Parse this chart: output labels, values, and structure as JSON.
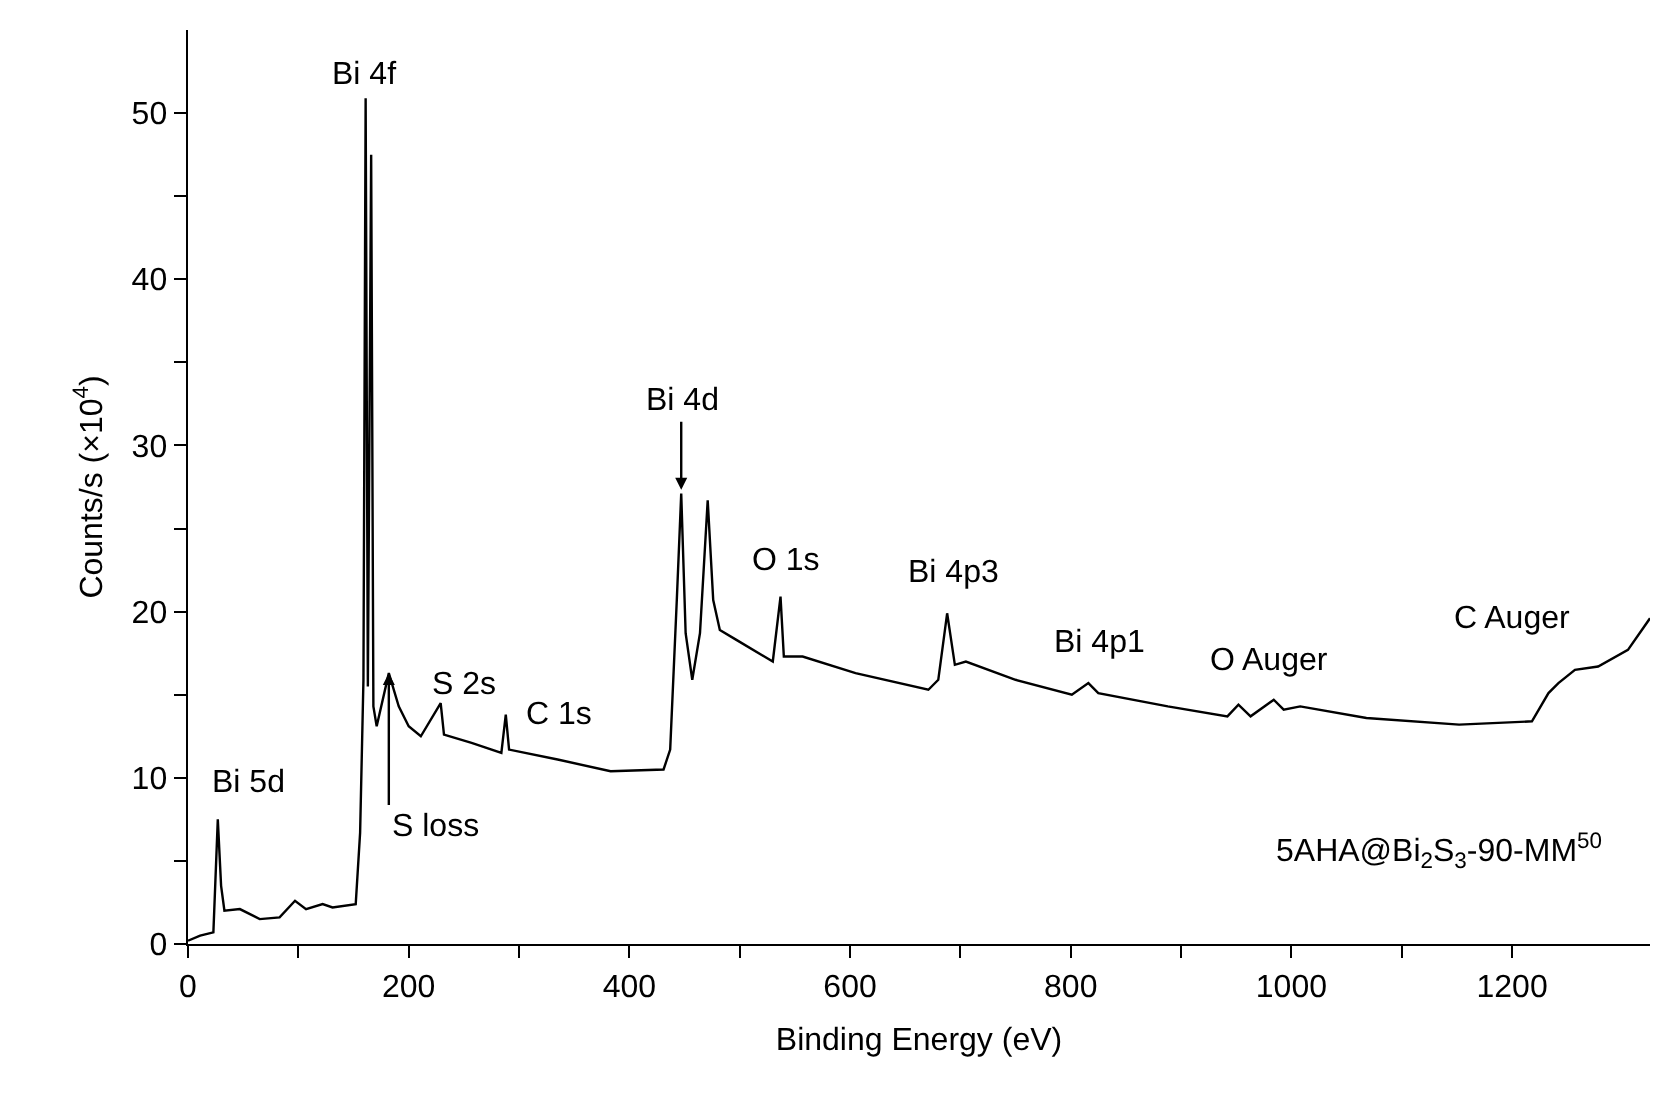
{
  "chart_data": {
    "type": "line",
    "xlabel": "Binding Energy (eV)",
    "ylabel": "Counts/s (×10$^{4}$)",
    "xlim": [
      0,
      1325
    ],
    "ylim": [
      0,
      55
    ],
    "xticks": [
      0,
      {
        "value": 100,
        "label": null
      },
      200,
      {
        "value": 300,
        "label": null
      },
      400,
      {
        "value": 500,
        "label": null
      },
      600,
      {
        "value": 700,
        "label": null
      },
      800,
      {
        "value": 900,
        "label": null
      },
      1000,
      {
        "value": 1100,
        "label": null
      },
      1200
    ],
    "yticks": [
      0,
      {
        "value": 5,
        "label": null
      },
      10,
      {
        "value": 15,
        "label": null
      },
      20,
      {
        "value": 25,
        "label": null
      },
      30,
      {
        "value": 35,
        "label": null
      },
      40,
      {
        "value": 45,
        "label": null
      },
      50
    ],
    "grid": false,
    "marker": "none",
    "line_style": "solid",
    "series": [
      {
        "color": "#000000",
        "x": [
          0,
          11,
          23,
          27,
          30,
          33,
          47,
          65,
          83,
          97,
          107,
          122,
          131,
          152,
          156,
          159,
          161,
          163,
          166,
          168,
          171,
          182,
          191,
          200,
          211,
          229,
          232,
          257,
          284,
          288,
          291,
          335,
          383,
          431,
          437,
          443,
          447,
          451,
          457,
          464,
          471,
          476,
          482,
          497,
          530,
          537,
          540,
          557,
          605,
          671,
          680,
          688,
          695,
          705,
          750,
          801,
          816,
          825,
          888,
          942,
          952,
          963,
          984,
          993,
          1008,
          1068,
          1152,
          1218,
          1233,
          1242,
          1257,
          1278,
          1305,
          1325
        ],
        "values": [
          0.2,
          0.5,
          0.7,
          7.5,
          3.5,
          2.0,
          2.1,
          1.5,
          1.6,
          2.6,
          2.1,
          2.4,
          2.2,
          2.4,
          6.7,
          15.9,
          50.9,
          15.5,
          47.5,
          14.3,
          13.1,
          16.3,
          14.3,
          13.1,
          12.5,
          14.5,
          12.6,
          12.1,
          11.5,
          13.8,
          11.7,
          11.1,
          10.4,
          10.5,
          11.7,
          20.7,
          27.1,
          18.7,
          15.9,
          18.7,
          26.7,
          20.7,
          18.9,
          18.3,
          17.0,
          20.9,
          17.3,
          17.3,
          16.3,
          15.3,
          15.9,
          19.9,
          16.8,
          17.0,
          15.9,
          15.0,
          15.7,
          15.1,
          14.3,
          13.7,
          14.4,
          13.7,
          14.7,
          14.1,
          14.3,
          13.6,
          13.2,
          13.4,
          15.1,
          15.7,
          16.5,
          16.7,
          17.7,
          19.6
        ]
      }
    ],
    "annotations": [
      {
        "text": "Bi 5d",
        "x": 27,
        "y": 7.5
      },
      {
        "text": "Bi 4f",
        "x": 161,
        "y": 50.9
      },
      {
        "text": "S 2s",
        "x": 229,
        "y": 14.5
      },
      {
        "text": "S loss",
        "x": 182,
        "y": 16.3
      },
      {
        "text": "C 1s",
        "x": 288,
        "y": 13.8
      },
      {
        "text": "Bi 4d",
        "x": 447,
        "y": 27.1
      },
      {
        "text": "O 1s",
        "x": 537,
        "y": 20.9
      },
      {
        "text": "Bi 4p3",
        "x": 688,
        "y": 19.9
      },
      {
        "text": "Bi 4p1",
        "x": 816,
        "y": 15.7
      },
      {
        "text": "O Auger",
        "x": 984,
        "y": 14.7
      },
      {
        "text": "C Auger",
        "x": 1233,
        "y": 15.1
      },
      "5AHA@Bi$_{2}$S$_{3}$-90-MM$^{50}$"
    ]
  }
}
